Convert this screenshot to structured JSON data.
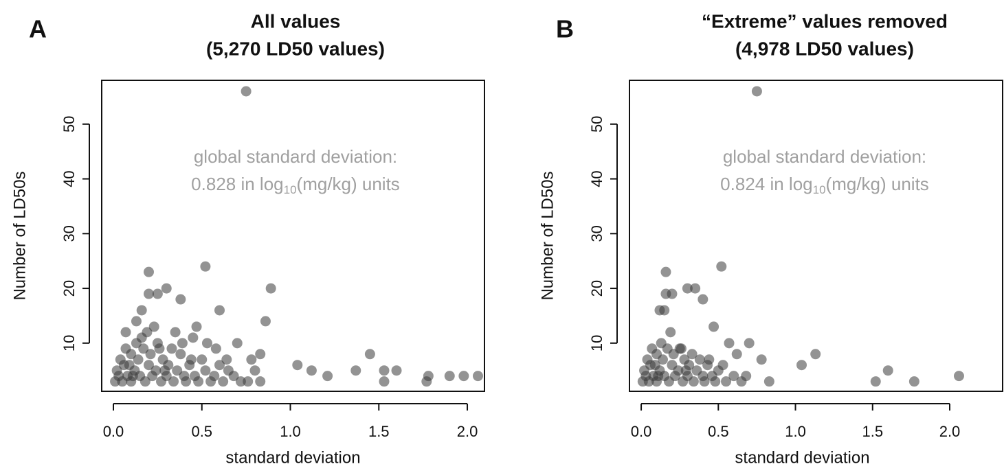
{
  "chart_data": [
    {
      "type": "scatter",
      "panel_label": "A",
      "title": [
        "All values",
        "(5,270 LD50 values)"
      ],
      "xlabel": "standard deviation",
      "ylabel": "Number of LD50s",
      "annotation": {
        "line1": "global standard deviation:",
        "line2": [
          "0.828 in log",
          "10",
          "(mg/kg) units"
        ]
      },
      "color": "#3a3a3a",
      "alpha": 0.55,
      "annotation_color": "#a0a0a0",
      "xlim": [
        -0.066,
        2.097
      ],
      "ylim": [
        1.2,
        58
      ],
      "xticks": [
        {
          "value": 0,
          "label": "0.0"
        },
        0.5,
        {
          "value": 1,
          "label": "1.0"
        },
        1.5,
        {
          "value": 2,
          "label": "2.0"
        }
      ],
      "yticks": [
        10,
        20,
        30,
        40,
        50
      ],
      "x": [
        0.75,
        0.52,
        0.2,
        0.3,
        0.89,
        0.38,
        0.6,
        0.86,
        0.07,
        0.16,
        0.13,
        0.2,
        0.25,
        0.47,
        0.7,
        0.78,
        0.83,
        1.04,
        1.12,
        1.21,
        1.37,
        1.45,
        1.53,
        1.53,
        1.6,
        1.77,
        1.78,
        1.9,
        1.98,
        2.06,
        0.01,
        0.03,
        0.05,
        0.02,
        0.06,
        0.08,
        0.1,
        0.12,
        0.14,
        0.15,
        0.17,
        0.18,
        0.2,
        0.21,
        0.22,
        0.24,
        0.25,
        0.27,
        0.28,
        0.3,
        0.31,
        0.33,
        0.34,
        0.36,
        0.38,
        0.4,
        0.41,
        0.43,
        0.45,
        0.46,
        0.48,
        0.5,
        0.52,
        0.55,
        0.57,
        0.6,
        0.62,
        0.65,
        0.68,
        0.72,
        0.76,
        0.8,
        0.1,
        0.13,
        0.19,
        0.23,
        0.09,
        0.16,
        0.26,
        0.35,
        0.04,
        0.07,
        0.11,
        0.29,
        0.39,
        0.44,
        0.53,
        0.58,
        0.64,
        0.83
      ],
      "values": [
        56,
        24,
        23,
        20,
        20,
        18,
        16,
        14,
        12,
        16,
        14,
        19,
        19,
        13,
        10,
        7,
        8,
        6,
        5,
        4,
        5,
        8,
        5,
        3,
        5,
        3,
        4,
        4,
        4,
        4,
        3,
        4,
        3,
        5,
        6,
        4,
        3,
        5,
        7,
        4,
        9,
        3,
        6,
        8,
        4,
        5,
        10,
        3,
        7,
        4,
        6,
        9,
        3,
        5,
        8,
        4,
        3,
        6,
        11,
        4,
        3,
        7,
        5,
        3,
        4,
        6,
        3,
        5,
        4,
        3,
        3,
        5,
        8,
        10,
        12,
        13,
        6,
        11,
        9,
        12,
        7,
        9,
        4,
        5,
        10,
        7,
        10,
        9,
        7,
        3
      ]
    },
    {
      "type": "scatter",
      "panel_label": "B",
      "title": [
        "“Extreme” values removed",
        "(4,978 LD50 values)"
      ],
      "xlabel": "standard deviation",
      "ylabel": "Number of LD50s",
      "annotation": {
        "line1": "global standard deviation:",
        "line2": [
          "0.824 in log",
          "10",
          "(mg/kg) units"
        ]
      },
      "color": "#3a3a3a",
      "alpha": 0.55,
      "annotation_color": "#a0a0a0",
      "xlim": [
        -0.076,
        2.343
      ],
      "ylim": [
        1.2,
        58
      ],
      "xticks": [
        {
          "value": 0,
          "label": "0.0"
        },
        0.5,
        {
          "value": 1,
          "label": "1.0"
        },
        1.5,
        {
          "value": 2,
          "label": "2.0"
        }
      ],
      "yticks": [
        10,
        20,
        30,
        40,
        50
      ],
      "x": [
        0.75,
        0.52,
        0.16,
        0.3,
        0.35,
        0.16,
        0.2,
        0.4,
        0.15,
        0.12,
        0.47,
        0.57,
        0.7,
        0.62,
        0.78,
        0.83,
        1.04,
        1.13,
        1.52,
        1.6,
        1.77,
        2.06,
        0.01,
        0.03,
        0.05,
        0.02,
        0.06,
        0.08,
        0.1,
        0.12,
        0.14,
        0.15,
        0.17,
        0.18,
        0.2,
        0.21,
        0.22,
        0.24,
        0.25,
        0.27,
        0.28,
        0.3,
        0.31,
        0.33,
        0.34,
        0.36,
        0.38,
        0.4,
        0.41,
        0.43,
        0.46,
        0.48,
        0.5,
        0.55,
        0.6,
        0.65,
        0.1,
        0.13,
        0.19,
        0.09,
        0.26,
        0.04,
        0.07,
        0.11,
        0.29,
        0.44,
        0.53,
        0.68
      ],
      "values": [
        56,
        24,
        23,
        20,
        20,
        19,
        19,
        18,
        16,
        16,
        13,
        10,
        10,
        8,
        7,
        3,
        6,
        8,
        3,
        5,
        3,
        4,
        3,
        4,
        3,
        5,
        6,
        4,
        3,
        5,
        7,
        4,
        9,
        3,
        6,
        8,
        4,
        5,
        9,
        3,
        7,
        4,
        6,
        8,
        3,
        5,
        7,
        4,
        3,
        6,
        4,
        3,
        5,
        3,
        4,
        3,
        8,
        10,
        12,
        6,
        9,
        7,
        9,
        4,
        5,
        7,
        6,
        4
      ]
    }
  ]
}
